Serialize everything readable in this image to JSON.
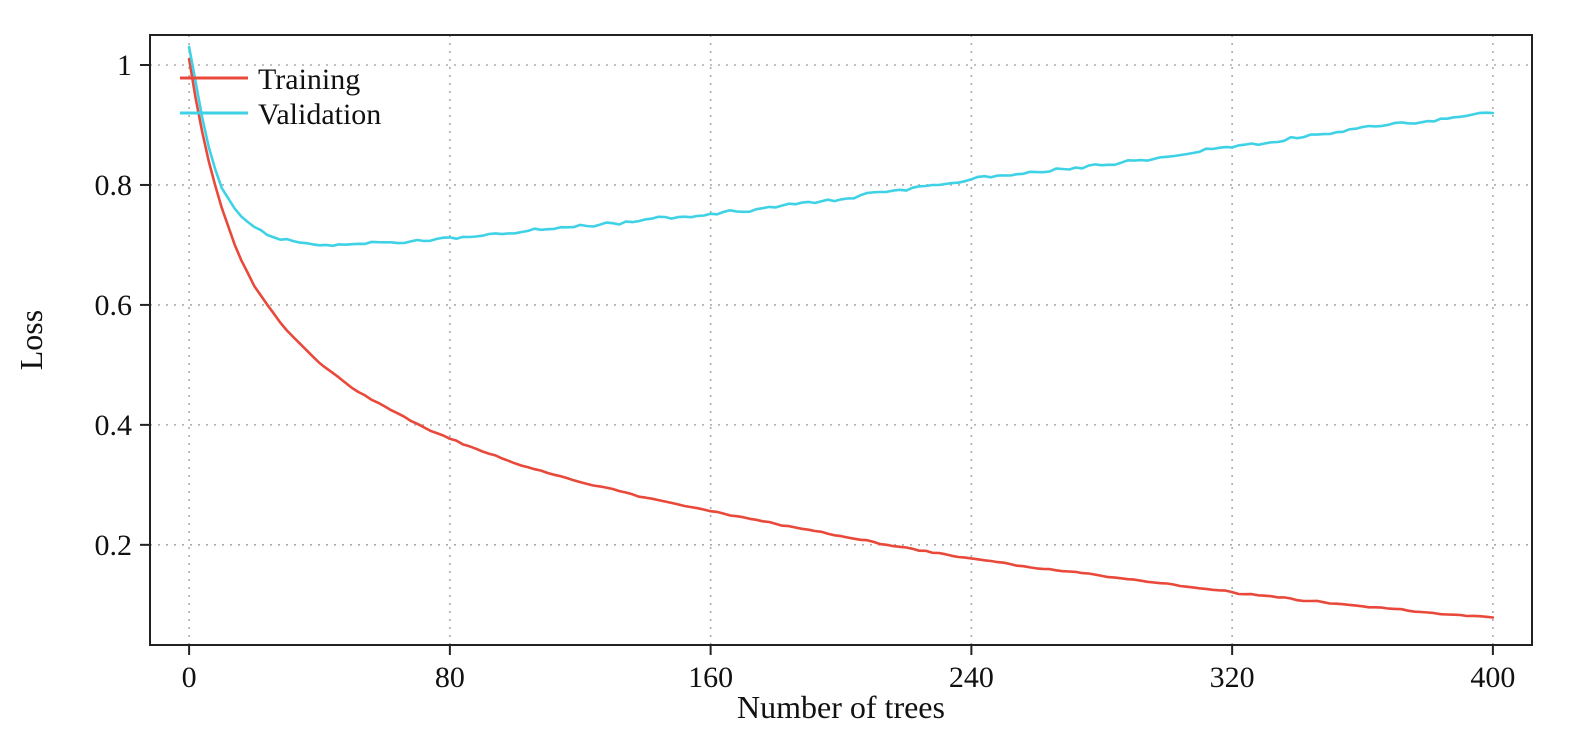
{
  "chart_data": {
    "type": "line",
    "title": "",
    "xlabel": "Number of trees",
    "ylabel": "Loss",
    "xlim": [
      -12,
      412
    ],
    "ylim": [
      0.033,
      1.05
    ],
    "x_ticks": [
      0,
      80,
      160,
      240,
      320,
      400
    ],
    "x_tick_labels": [
      "0",
      "80",
      "160",
      "240",
      "320",
      "400"
    ],
    "y_ticks": [
      0.2,
      0.4,
      0.6,
      0.8,
      1
    ],
    "y_tick_labels": [
      "0.2",
      "0.4",
      "0.6",
      "0.8",
      "1"
    ],
    "grid": "dotted",
    "legend_position": "top-left",
    "frame": true,
    "colors": {
      "grid": "#ababab",
      "frame": "#222222"
    },
    "series": [
      {
        "name": "Training",
        "color": "#e8493a",
        "x": [
          0,
          1,
          2,
          3,
          5,
          7,
          10,
          15,
          20,
          25,
          30,
          40,
          50,
          60,
          70,
          80,
          100,
          120,
          140,
          160,
          180,
          200,
          220,
          240,
          260,
          280,
          300,
          320,
          340,
          360,
          380,
          400
        ],
        "y": [
          1.01,
          0.975,
          0.945,
          0.915,
          0.862,
          0.818,
          0.762,
          0.685,
          0.632,
          0.592,
          0.558,
          0.503,
          0.462,
          0.43,
          0.401,
          0.376,
          0.336,
          0.305,
          0.279,
          0.257,
          0.235,
          0.214,
          0.195,
          0.177,
          0.162,
          0.148,
          0.135,
          0.121,
          0.109,
          0.097,
          0.087,
          0.079
        ]
      },
      {
        "name": "Validation",
        "color": "#3fd2e6",
        "x": [
          0,
          1,
          2,
          3,
          5,
          7,
          10,
          15,
          20,
          25,
          30,
          40,
          50,
          60,
          70,
          80,
          100,
          120,
          140,
          160,
          180,
          200,
          220,
          240,
          260,
          280,
          300,
          320,
          340,
          360,
          380,
          400
        ],
        "y": [
          1.03,
          1.005,
          0.972,
          0.94,
          0.885,
          0.842,
          0.795,
          0.752,
          0.729,
          0.715,
          0.707,
          0.7,
          0.7,
          0.703,
          0.707,
          0.712,
          0.721,
          0.731,
          0.741,
          0.752,
          0.764,
          0.778,
          0.794,
          0.81,
          0.822,
          0.834,
          0.848,
          0.864,
          0.878,
          0.894,
          0.907,
          0.92
        ]
      }
    ]
  }
}
